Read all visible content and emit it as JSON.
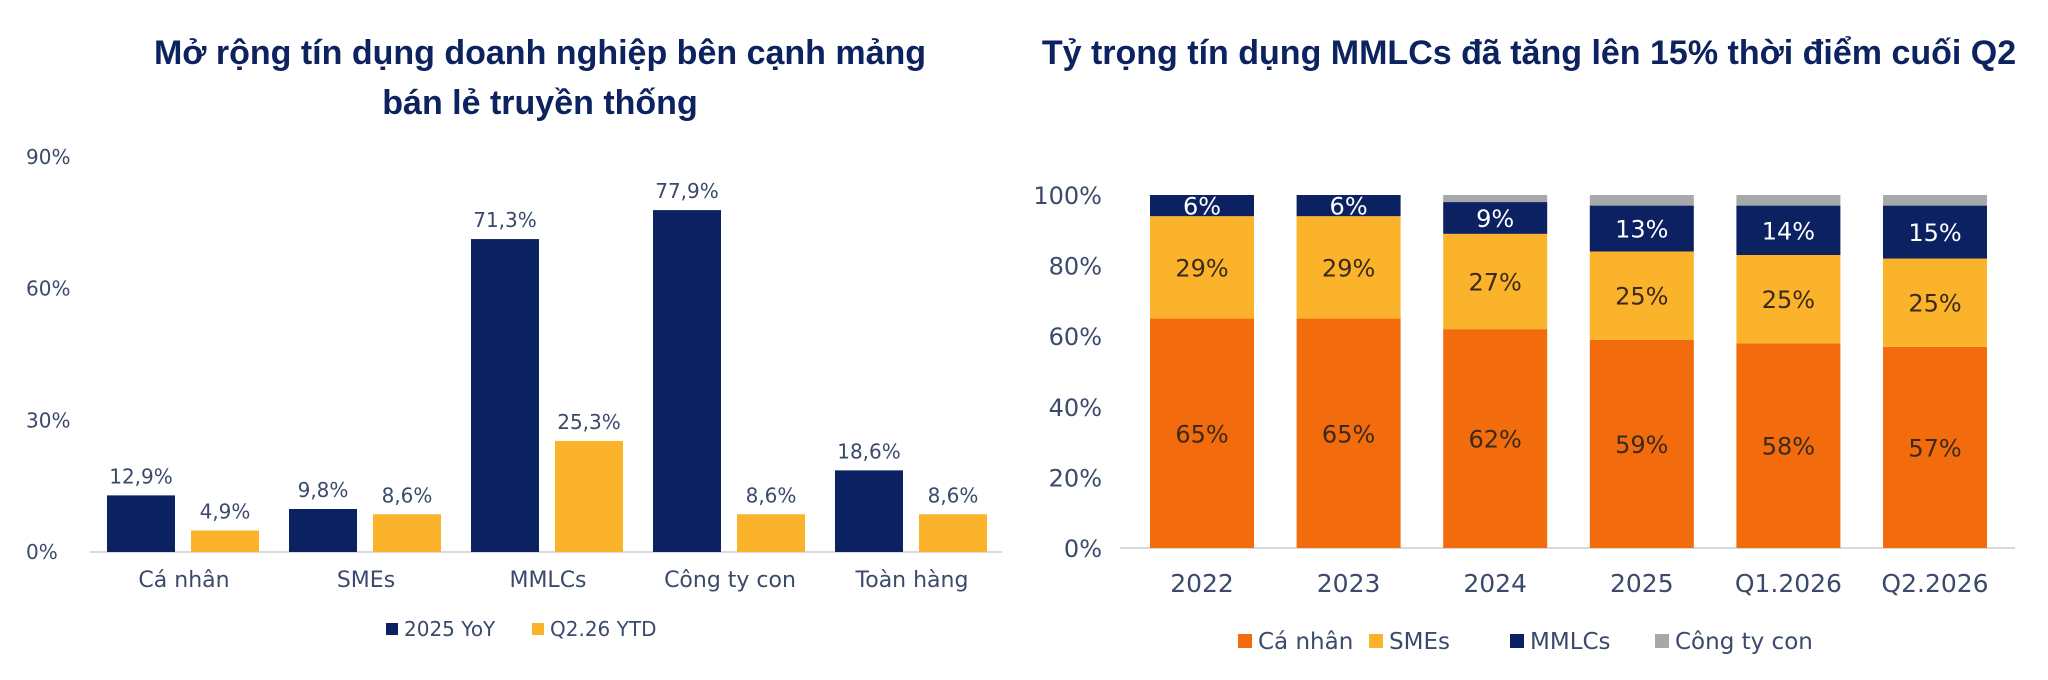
{
  "left": {
    "title_line1": "Mở rộng tín dụng doanh nghiệp bên cạnh mảng",
    "title_line2": "bán lẻ truyền thống"
  },
  "right": {
    "title": "Tỷ trọng tín dụng MMLCs đã tăng lên 15% thời điểm cuối Q2"
  },
  "colors": {
    "navy": "#0b2161",
    "amber": "#fbb32b",
    "orange": "#f26c0d",
    "gray": "#a7a8aa",
    "axis_text": "#3b4a6b",
    "label_text": "#3b4a6b"
  },
  "chart_data": [
    {
      "type": "bar",
      "title": "Mở rộng tín dụng doanh nghiệp bên cạnh mảng bán lẻ truyền thống",
      "categories": [
        "Cá nhân",
        "SMEs",
        "MMLCs",
        "Công ty con",
        "Toàn hàng"
      ],
      "series": [
        {
          "name": "2025 YoY",
          "values": [
            12.9,
            9.8,
            71.3,
            77.9,
            18.6
          ],
          "labels": [
            "12,9%",
            "9,8%",
            "71,3%",
            "77,9%",
            "18,6%"
          ]
        },
        {
          "name": "Q2.26 YTD",
          "values": [
            4.9,
            8.6,
            25.3,
            8.6,
            8.6
          ],
          "labels": [
            "4,9%",
            "8,6%",
            "25,3%",
            "8,6%",
            "8,6%"
          ]
        }
      ],
      "yticks": [
        "0%",
        "30%",
        "60%",
        "90%"
      ],
      "ylim": [
        0,
        90
      ],
      "legend": "bottom"
    },
    {
      "type": "bar",
      "stacked": true,
      "title": "Tỷ trọng tín dụng MMLCs đã tăng lên 15% thời điểm cuối Q2",
      "categories": [
        "2022",
        "2023",
        "2024",
        "2025",
        "Q1.2026",
        "Q2.2026"
      ],
      "series": [
        {
          "name": "Cá nhân",
          "values": [
            65,
            65,
            62,
            59,
            58,
            57
          ],
          "labels": [
            "65%",
            "65%",
            "62%",
            "59%",
            "58%",
            "57%"
          ]
        },
        {
          "name": "SMEs",
          "values": [
            29,
            29,
            27,
            25,
            25,
            25
          ],
          "labels": [
            "29%",
            "29%",
            "27%",
            "25%",
            "25%",
            "25%"
          ]
        },
        {
          "name": "MMLCs",
          "values": [
            6,
            6,
            9,
            13,
            14,
            15
          ],
          "labels": [
            "6%",
            "6%",
            "9%",
            "13%",
            "14%",
            "15%"
          ]
        },
        {
          "name": "Công ty con",
          "values": [
            0,
            0,
            2,
            3,
            3,
            3
          ]
        }
      ],
      "yticks": [
        "0%",
        "20%",
        "40%",
        "60%",
        "80%",
        "100%"
      ],
      "ylim": [
        0,
        100
      ],
      "legend": "bottom"
    }
  ]
}
